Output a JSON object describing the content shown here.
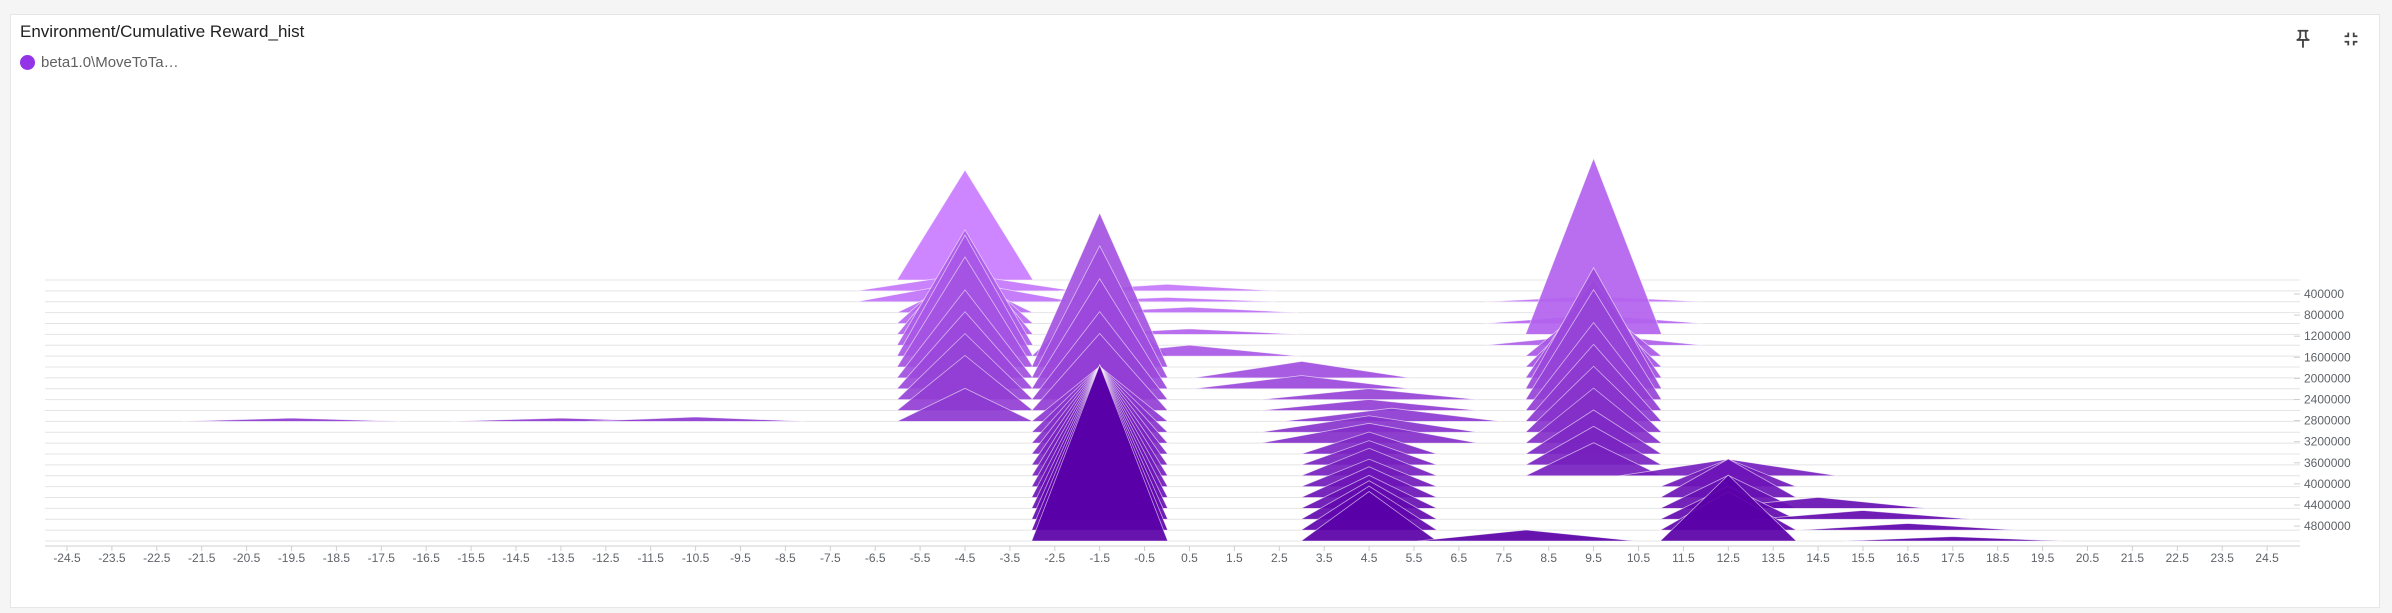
{
  "card": {
    "title": "Environment/Cumulative Reward_hist",
    "legend": [
      {
        "label": "beta1.0\\MoveToTa…",
        "color": "#9334e6"
      }
    ]
  },
  "toolbar": {
    "pin_icon": "pin-icon",
    "collapse_icon": "collapse-icon"
  },
  "chart_data": {
    "type": "histogram",
    "title": "Environment/Cumulative Reward_hist",
    "mode": "offset",
    "series_color_light": "#c97cff",
    "series_color_dark": "#5a00a8",
    "x_ticks": [
      "-24.5",
      "-23.5",
      "-22.5",
      "-21.5",
      "-20.5",
      "-19.5",
      "-18.5",
      "-17.5",
      "-16.5",
      "-15.5",
      "-14.5",
      "-13.5",
      "-12.5",
      "-11.5",
      "-10.5",
      "-9.5",
      "-8.5",
      "-7.5",
      "-6.5",
      "-5.5",
      "-4.5",
      "-3.5",
      "-2.5",
      "-1.5",
      "-0.5",
      "0.5",
      "1.5",
      "2.5",
      "3.5",
      "4.5",
      "5.5",
      "6.5",
      "7.5",
      "8.5",
      "9.5",
      "10.5",
      "11.5",
      "12.5",
      "13.5",
      "14.5",
      "15.5",
      "16.5",
      "17.5",
      "18.5",
      "19.5",
      "20.5",
      "21.5",
      "22.5",
      "23.5",
      "24.5"
    ],
    "y_ticks": [
      "400000",
      "800000",
      "1200000",
      "1600000",
      "2000000",
      "2400000",
      "2800000",
      "3200000",
      "3600000",
      "4000000",
      "4400000",
      "4800000"
    ],
    "xlim": [
      -25,
      25
    ],
    "step_range": [
      0,
      5000000
    ],
    "histograms": [
      {
        "step": 0,
        "peaks": [
          [
            -4.5,
            1.0
          ]
        ]
      },
      {
        "step": 200000,
        "peaks": [
          [
            -4.5,
            0.15
          ],
          [
            0.0,
            0.06
          ]
        ]
      },
      {
        "step": 400000,
        "peaks": [
          [
            -4.5,
            0.18
          ],
          [
            0.0,
            0.04
          ],
          [
            9.5,
            0.05
          ]
        ]
      },
      {
        "step": 600000,
        "peaks": [
          [
            -4.5,
            0.3
          ],
          [
            0.5,
            0.05
          ]
        ]
      },
      {
        "step": 800000,
        "peaks": [
          [
            -4.5,
            0.55
          ],
          [
            9.5,
            0.08
          ]
        ]
      },
      {
        "step": 1000000,
        "peaks": [
          [
            -4.5,
            0.75
          ],
          [
            0.5,
            0.05
          ],
          [
            9.5,
            1.6
          ]
        ]
      },
      {
        "step": 1200000,
        "peaks": [
          [
            -4.5,
            1.05
          ],
          [
            9.5,
            0.1
          ]
        ]
      },
      {
        "step": 1400000,
        "peaks": [
          [
            -4.5,
            1.1
          ],
          [
            -1.5,
            0.6
          ],
          [
            0.5,
            0.1
          ],
          [
            9.5,
            0.5
          ]
        ]
      },
      {
        "step": 1600000,
        "peaks": [
          [
            -4.5,
            1.0
          ],
          [
            -1.5,
            1.4
          ],
          [
            9.5,
            0.6
          ]
        ]
      },
      {
        "step": 1800000,
        "peaks": [
          [
            -4.5,
            0.8
          ],
          [
            -1.5,
            1.2
          ],
          [
            3.0,
            0.15
          ],
          [
            9.5,
            0.9
          ]
        ]
      },
      {
        "step": 2000000,
        "peaks": [
          [
            -4.5,
            0.7
          ],
          [
            -1.5,
            1.0
          ],
          [
            3.0,
            0.12
          ],
          [
            9.5,
            1.1
          ]
        ]
      },
      {
        "step": 2200000,
        "peaks": [
          [
            -4.5,
            0.6
          ],
          [
            -1.5,
            0.8
          ],
          [
            4.5,
            0.1
          ],
          [
            9.5,
            1.0
          ]
        ]
      },
      {
        "step": 2400000,
        "peaks": [
          [
            -4.5,
            0.5
          ],
          [
            -1.5,
            0.7
          ],
          [
            4.5,
            0.1
          ],
          [
            9.5,
            0.8
          ]
        ]
      },
      {
        "step": 2600000,
        "peaks": [
          [
            -19.5,
            0.03
          ],
          [
            -13.5,
            0.03
          ],
          [
            -10.5,
            0.04
          ],
          [
            -4.5,
            0.3
          ],
          [
            -1.5,
            0.5
          ],
          [
            5.0,
            0.12
          ],
          [
            9.5,
            0.7
          ]
        ]
      },
      {
        "step": 2800000,
        "peaks": [
          [
            -1.5,
            0.6
          ],
          [
            4.5,
            0.15
          ],
          [
            9.5,
            0.6
          ]
        ]
      },
      {
        "step": 3000000,
        "peaks": [
          [
            -1.5,
            0.7
          ],
          [
            4.5,
            0.18
          ],
          [
            9.5,
            0.5
          ]
        ]
      },
      {
        "step": 3200000,
        "peaks": [
          [
            -1.5,
            0.8
          ],
          [
            4.5,
            0.2
          ],
          [
            9.5,
            0.4
          ]
        ]
      },
      {
        "step": 3400000,
        "peaks": [
          [
            -1.5,
            0.9
          ],
          [
            4.5,
            0.22
          ],
          [
            9.5,
            0.35
          ]
        ]
      },
      {
        "step": 3600000,
        "peaks": [
          [
            -1.5,
            1.0
          ],
          [
            4.5,
            0.25
          ],
          [
            9.5,
            0.3
          ],
          [
            12.5,
            0.15
          ]
        ]
      },
      {
        "step": 3800000,
        "peaks": [
          [
            -1.5,
            1.1
          ],
          [
            4.5,
            0.25
          ],
          [
            12.5,
            0.25
          ]
        ]
      },
      {
        "step": 4000000,
        "peaks": [
          [
            -1.5,
            1.2
          ],
          [
            4.5,
            0.28
          ],
          [
            12.5,
            0.35
          ]
        ]
      },
      {
        "step": 4200000,
        "peaks": [
          [
            -1.5,
            1.3
          ],
          [
            4.5,
            0.3
          ],
          [
            12.5,
            0.3
          ],
          [
            14.5,
            0.1
          ]
        ]
      },
      {
        "step": 4400000,
        "peaks": [
          [
            -1.5,
            1.4
          ],
          [
            4.5,
            0.35
          ],
          [
            12.5,
            0.3
          ],
          [
            15.5,
            0.08
          ]
        ]
      },
      {
        "step": 4600000,
        "peaks": [
          [
            -1.5,
            1.5
          ],
          [
            4.5,
            0.4
          ],
          [
            12.5,
            0.35
          ],
          [
            16.5,
            0.06
          ]
        ]
      },
      {
        "step": 4800000,
        "peaks": [
          [
            -1.5,
            1.6
          ],
          [
            4.5,
            0.45
          ],
          [
            8.0,
            0.1
          ],
          [
            12.5,
            0.6
          ],
          [
            17.5,
            0.04
          ]
        ]
      }
    ]
  }
}
